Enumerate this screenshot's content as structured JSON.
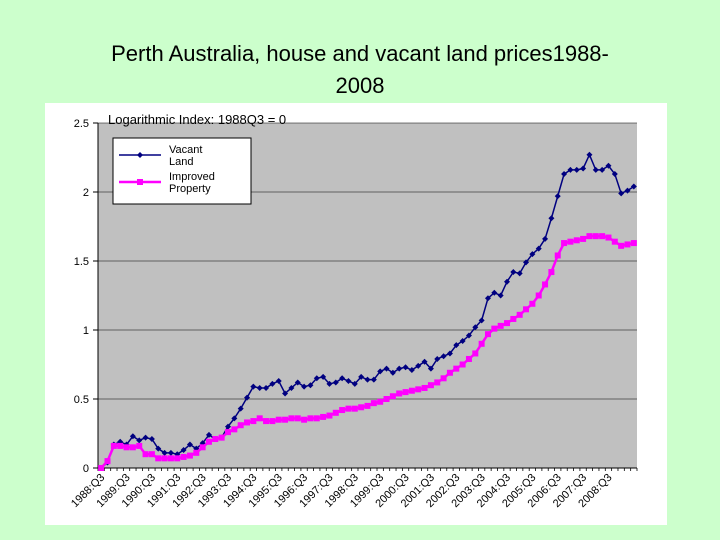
{
  "slide": {
    "title_line1": "Perth Australia, house and vacant land prices1988-",
    "title_line2": "2008"
  },
  "colors": {
    "background": "#ccffcc",
    "plot_area": "#c0c0c0",
    "vacant_land": "#000080",
    "improved_property": "#ff00ff"
  },
  "chart_data": {
    "type": "line",
    "title": "Logarithmic Index: 1988Q3 = 0",
    "ylim": [
      0,
      2.5
    ],
    "yticks": [
      0,
      0.5,
      1,
      1.5,
      2,
      2.5
    ],
    "ytick_labels": [
      "0",
      "0.5",
      "1",
      "1.5",
      "2",
      "2.5"
    ],
    "grid": "horizontal",
    "legend_placement": "top-left",
    "x_start": "1988:Q3",
    "x_tick_labels": [
      "1988:Q3",
      "1989:Q3",
      "1990:Q3",
      "1991:Q3",
      "1992:Q3",
      "1993:Q3",
      "1994:Q3",
      "1995:Q3",
      "1996:Q3",
      "1997:Q3",
      "1998:Q3",
      "1999:Q3",
      "2000:Q3",
      "2001:Q3",
      "2002:Q3",
      "2003:Q3",
      "2004:Q3",
      "2005:Q3",
      "2006:Q3",
      "2007:Q3",
      "2008:Q3"
    ],
    "series": [
      {
        "name": "Vacant Land",
        "color": "#000080",
        "marker": "diamond",
        "values": [
          0.0,
          0.04,
          0.17,
          0.19,
          0.17,
          0.23,
          0.2,
          0.22,
          0.21,
          0.14,
          0.11,
          0.11,
          0.1,
          0.13,
          0.17,
          0.14,
          0.18,
          0.24,
          0.21,
          0.22,
          0.3,
          0.36,
          0.43,
          0.51,
          0.59,
          0.58,
          0.58,
          0.61,
          0.63,
          0.54,
          0.58,
          0.62,
          0.59,
          0.6,
          0.65,
          0.66,
          0.61,
          0.62,
          0.65,
          0.63,
          0.61,
          0.66,
          0.64,
          0.64,
          0.7,
          0.72,
          0.69,
          0.72,
          0.73,
          0.71,
          0.74,
          0.77,
          0.72,
          0.79,
          0.81,
          0.83,
          0.89,
          0.92,
          0.96,
          1.02,
          1.07,
          1.23,
          1.27,
          1.25,
          1.35,
          1.42,
          1.41,
          1.49,
          1.55,
          1.59,
          1.66,
          1.81,
          1.97,
          2.13,
          2.16,
          2.16,
          2.17,
          2.27,
          2.16,
          2.16,
          2.19,
          2.13,
          1.99,
          2.01,
          2.04
        ]
      },
      {
        "name": "Improved Property",
        "color": "#ff00ff",
        "marker": "square",
        "values": [
          0.0,
          0.05,
          0.16,
          0.16,
          0.15,
          0.15,
          0.16,
          0.1,
          0.1,
          0.07,
          0.07,
          0.07,
          0.07,
          0.08,
          0.09,
          0.11,
          0.15,
          0.19,
          0.21,
          0.22,
          0.26,
          0.28,
          0.31,
          0.33,
          0.34,
          0.36,
          0.34,
          0.34,
          0.35,
          0.35,
          0.36,
          0.36,
          0.35,
          0.36,
          0.36,
          0.37,
          0.38,
          0.4,
          0.42,
          0.43,
          0.43,
          0.44,
          0.45,
          0.47,
          0.48,
          0.5,
          0.52,
          0.54,
          0.55,
          0.56,
          0.57,
          0.58,
          0.6,
          0.62,
          0.65,
          0.69,
          0.72,
          0.75,
          0.79,
          0.83,
          0.9,
          0.97,
          1.01,
          1.03,
          1.05,
          1.08,
          1.11,
          1.15,
          1.19,
          1.25,
          1.33,
          1.42,
          1.54,
          1.63,
          1.64,
          1.65,
          1.66,
          1.68,
          1.68,
          1.68,
          1.67,
          1.64,
          1.61,
          1.62,
          1.63
        ]
      }
    ]
  }
}
